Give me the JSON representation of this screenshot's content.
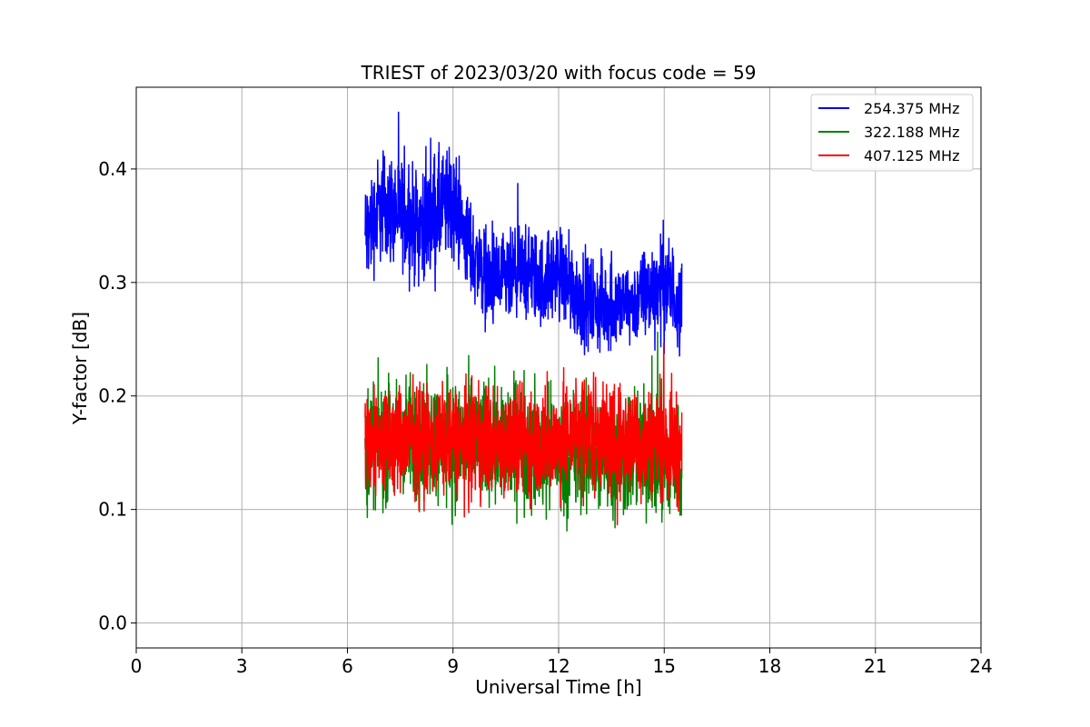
{
  "chart_data": {
    "type": "line",
    "title": "TRIEST of 2023/03/20 with focus code = 59",
    "xlabel": "Universal Time [h]",
    "ylabel": "Y-factor [dB]",
    "xlim": [
      0,
      24
    ],
    "ylim": [
      -0.022,
      0.472
    ],
    "xticks": [
      0,
      3,
      6,
      9,
      12,
      15,
      18,
      21,
      24
    ],
    "yticks": [
      0.0,
      0.1,
      0.2,
      0.3,
      0.4
    ],
    "ytick_labels": [
      "0.0",
      "0.1",
      "0.2",
      "0.3",
      "0.4"
    ],
    "grid": true,
    "legend_position": "top-right",
    "x_range_of_data": [
      6.5,
      15.5
    ],
    "series": [
      {
        "name": "254.375 MHz",
        "color": "#0000ff",
        "x": [
          6.5,
          7.0,
          7.5,
          8.0,
          8.5,
          9.0,
          9.5,
          10.0,
          10.5,
          11.0,
          11.5,
          12.0,
          12.5,
          13.0,
          13.5,
          14.0,
          14.5,
          15.0,
          15.5
        ],
        "y": [
          0.34,
          0.37,
          0.36,
          0.35,
          0.36,
          0.37,
          0.33,
          0.3,
          0.3,
          0.31,
          0.3,
          0.31,
          0.29,
          0.28,
          0.28,
          0.28,
          0.29,
          0.3,
          0.28
        ],
        "spread": [
          0.07,
          0.07,
          0.07,
          0.07,
          0.08,
          0.07,
          0.06,
          0.06,
          0.06,
          0.06,
          0.06,
          0.06,
          0.06,
          0.06,
          0.06,
          0.05,
          0.06,
          0.07,
          0.06
        ]
      },
      {
        "name": "322.188 MHz",
        "color": "#008000",
        "x": [
          6.5,
          7.0,
          7.5,
          8.0,
          8.5,
          9.0,
          9.5,
          10.0,
          10.5,
          11.0,
          11.5,
          12.0,
          12.5,
          13.0,
          13.5,
          14.0,
          14.5,
          15.0,
          15.5
        ],
        "y": [
          0.16,
          0.16,
          0.16,
          0.16,
          0.16,
          0.16,
          0.16,
          0.16,
          0.16,
          0.16,
          0.15,
          0.15,
          0.15,
          0.15,
          0.15,
          0.15,
          0.15,
          0.14,
          0.14
        ],
        "spread": [
          0.08,
          0.08,
          0.08,
          0.08,
          0.08,
          0.08,
          0.08,
          0.08,
          0.08,
          0.08,
          0.08,
          0.08,
          0.08,
          0.08,
          0.08,
          0.08,
          0.08,
          0.08,
          0.08
        ]
      },
      {
        "name": "407.125 MHz",
        "color": "#ff0000",
        "x": [
          6.5,
          7.0,
          7.5,
          8.0,
          8.5,
          9.0,
          9.5,
          10.0,
          10.5,
          11.0,
          11.5,
          12.0,
          12.5,
          13.0,
          13.5,
          14.0,
          14.5,
          15.0,
          15.5
        ],
        "y": [
          0.16,
          0.16,
          0.16,
          0.16,
          0.16,
          0.16,
          0.16,
          0.16,
          0.16,
          0.16,
          0.16,
          0.16,
          0.17,
          0.17,
          0.16,
          0.16,
          0.16,
          0.16,
          0.15
        ],
        "spread": [
          0.07,
          0.07,
          0.07,
          0.07,
          0.07,
          0.07,
          0.07,
          0.07,
          0.07,
          0.07,
          0.07,
          0.07,
          0.07,
          0.08,
          0.07,
          0.07,
          0.07,
          0.07,
          0.07
        ]
      }
    ]
  }
}
